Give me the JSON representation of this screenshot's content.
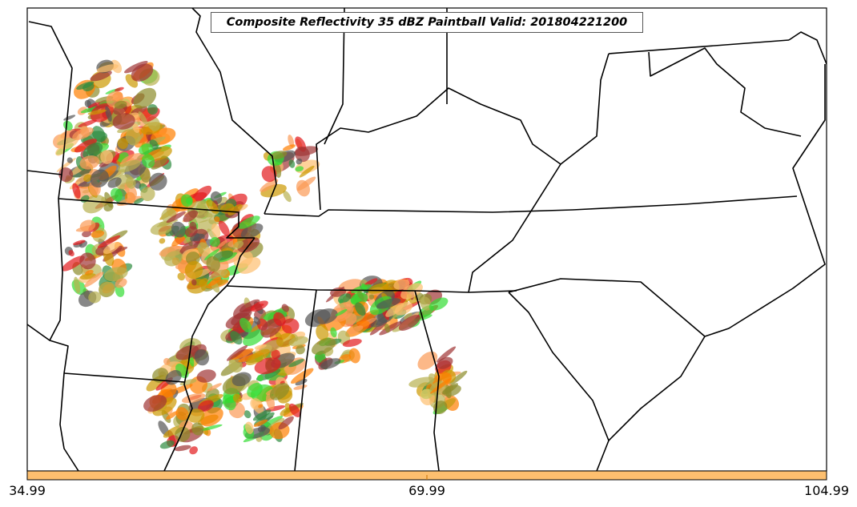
{
  "title": "Composite Reflectivity 35 dBZ Paintball Valid: 201804221200",
  "colorbar": {
    "color": "#fdbf6f",
    "ticks": [
      "34.99",
      "69.99",
      "104.99"
    ]
  },
  "member_colors": [
    "#e31a1c",
    "#ff7f00",
    "#fb9a55",
    "#fdbf6f",
    "#33dd33",
    "#2e8b3e",
    "#8c8c2a",
    "#b8b050",
    "#555555",
    "#a03535",
    "#cc9900"
  ]
}
